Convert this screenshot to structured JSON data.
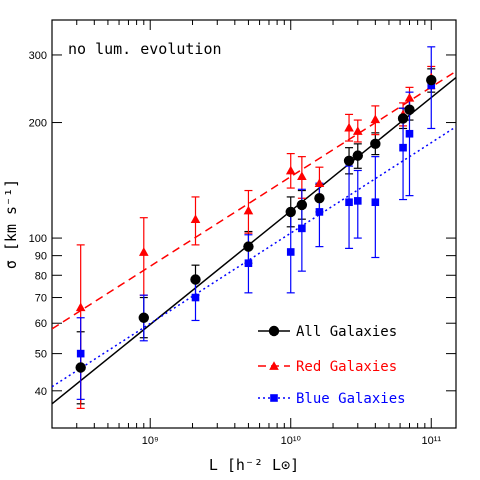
{
  "chart_data": {
    "type": "scatter",
    "xscale": "log",
    "yscale": "log",
    "xlim": [
      200000000,
      150000000000
    ],
    "ylim": [
      32,
      370
    ],
    "xlabel_prefix": "L ",
    "xlabel_units": "[h⁻² L⊙]",
    "ylabel_prefix": "σ ",
    "ylabel_units": "[km s⁻¹]",
    "annotation": "no lum. evolution",
    "x_ticks": [
      {
        "value": 1000000000,
        "label": "10⁹"
      },
      {
        "value": 10000000000,
        "label": "10¹⁰"
      },
      {
        "value": 100000000000,
        "label": "10¹¹"
      }
    ],
    "y_ticks": [
      {
        "value": 40,
        "label": "40"
      },
      {
        "value": 50,
        "label": "50"
      },
      {
        "value": 60,
        "label": "60"
      },
      {
        "value": 70,
        "label": "70"
      },
      {
        "value": 80,
        "label": "80"
      },
      {
        "value": 90,
        "label": "90"
      },
      {
        "value": 100,
        "label": "100"
      },
      {
        "value": 200,
        "label": "200"
      },
      {
        "value": 300,
        "label": "300"
      }
    ],
    "series": [
      {
        "name": "All Galaxies",
        "color": "#000000",
        "marker": "circle",
        "line_style": "solid",
        "fit": [
          [
            200000000,
            37
          ],
          [
            150000000000,
            262
          ]
        ],
        "points": [
          {
            "x": 320000000,
            "y": 46,
            "lo": 37,
            "hi": 57
          },
          {
            "x": 900000000,
            "y": 62,
            "lo": 55,
            "hi": 70
          },
          {
            "x": 2100000000,
            "y": 78,
            "lo": 71,
            "hi": 85
          },
          {
            "x": 5000000000,
            "y": 95,
            "lo": 86,
            "hi": 104
          },
          {
            "x": 10000000000,
            "y": 117,
            "lo": 107,
            "hi": 128
          },
          {
            "x": 12000000000,
            "y": 122,
            "lo": 112,
            "hi": 133
          },
          {
            "x": 16000000000,
            "y": 127,
            "lo": 117,
            "hi": 138
          },
          {
            "x": 26000000000,
            "y": 159,
            "lo": 147,
            "hi": 172
          },
          {
            "x": 30000000000,
            "y": 164,
            "lo": 152,
            "hi": 176
          },
          {
            "x": 40000000000,
            "y": 176,
            "lo": 165,
            "hi": 188
          },
          {
            "x": 63000000000,
            "y": 205,
            "lo": 193,
            "hi": 218
          },
          {
            "x": 70000000000,
            "y": 216,
            "lo": 203,
            "hi": 228
          },
          {
            "x": 100000000000,
            "y": 258,
            "lo": 240,
            "hi": 276
          }
        ]
      },
      {
        "name": "Red Galaxies",
        "color": "#ff0000",
        "marker": "triangle",
        "line_style": "dashed",
        "fit": [
          [
            200000000,
            58
          ],
          [
            150000000000,
            272
          ]
        ],
        "points": [
          {
            "x": 320000000,
            "y": 66,
            "lo": 36,
            "hi": 96
          },
          {
            "x": 900000000,
            "y": 92,
            "lo": 71,
            "hi": 113
          },
          {
            "x": 2100000000,
            "y": 112,
            "lo": 96,
            "hi": 128
          },
          {
            "x": 5000000000,
            "y": 118,
            "lo": 103,
            "hi": 133
          },
          {
            "x": 10000000000,
            "y": 150,
            "lo": 135,
            "hi": 166
          },
          {
            "x": 12000000000,
            "y": 145,
            "lo": 127,
            "hi": 163
          },
          {
            "x": 16000000000,
            "y": 139,
            "lo": 125,
            "hi": 153
          },
          {
            "x": 26000000000,
            "y": 194,
            "lo": 179,
            "hi": 210
          },
          {
            "x": 30000000000,
            "y": 190,
            "lo": 178,
            "hi": 203
          },
          {
            "x": 40000000000,
            "y": 204,
            "lo": 186,
            "hi": 221
          },
          {
            "x": 63000000000,
            "y": 210,
            "lo": 196,
            "hi": 225
          },
          {
            "x": 70000000000,
            "y": 232,
            "lo": 217,
            "hi": 247
          },
          {
            "x": 100000000000,
            "y": 262,
            "lo": 245,
            "hi": 280
          }
        ]
      },
      {
        "name": "Blue Galaxies",
        "color": "#0000ff",
        "marker": "square",
        "line_style": "dotted",
        "fit": [
          [
            200000000,
            41
          ],
          [
            150000000000,
            195
          ]
        ],
        "points": [
          {
            "x": 320000000,
            "y": 50,
            "lo": 38,
            "hi": 62
          },
          {
            "x": 900000000,
            "y": 62,
            "lo": 54,
            "hi": 71
          },
          {
            "x": 2100000000,
            "y": 70,
            "lo": 61,
            "hi": 79
          },
          {
            "x": 5000000000,
            "y": 86,
            "lo": 72,
            "hi": 102
          },
          {
            "x": 10000000000,
            "y": 92,
            "lo": 72,
            "hi": 117
          },
          {
            "x": 12000000000,
            "y": 106,
            "lo": 82,
            "hi": 134
          },
          {
            "x": 16000000000,
            "y": 117,
            "lo": 95,
            "hi": 139
          },
          {
            "x": 26000000000,
            "y": 124,
            "lo": 94,
            "hi": 154
          },
          {
            "x": 30000000000,
            "y": 125,
            "lo": 100,
            "hi": 150
          },
          {
            "x": 40000000000,
            "y": 124,
            "lo": 89,
            "hi": 163
          },
          {
            "x": 63000000000,
            "y": 172,
            "lo": 126,
            "hi": 218
          },
          {
            "x": 70000000000,
            "y": 187,
            "lo": 129,
            "hi": 240
          },
          {
            "x": 100000000000,
            "y": 250,
            "lo": 193,
            "hi": 315
          }
        ]
      }
    ]
  }
}
